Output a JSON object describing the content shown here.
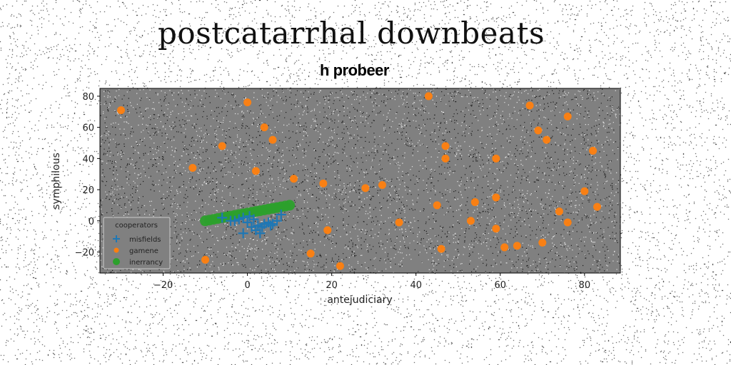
{
  "page": {
    "title": "postcatarrhal downbeats"
  },
  "colors": {
    "plot_background": "#808080",
    "series_blue": "#1f77b4",
    "series_orange": "#ff7f0e",
    "series_green": "#2ca02c"
  },
  "chart_data": {
    "type": "scatter",
    "title": "h probeer",
    "xlabel": "antejudiciary",
    "ylabel": "symphilous",
    "xlim": [
      -35,
      88.5
    ],
    "ylim": [
      -33.5,
      85
    ],
    "xticks": [
      -20,
      0,
      20,
      40,
      60,
      80
    ],
    "yticks": [
      -20,
      0,
      20,
      40,
      60,
      80
    ],
    "grid": false,
    "legend": {
      "title": "cooperators",
      "position": "lower left"
    },
    "series": [
      {
        "name": "misfields",
        "marker": "plus",
        "color": "#1f77b4",
        "points": [
          [
            -6,
            2
          ],
          [
            -4,
            0
          ],
          [
            -2,
            1
          ],
          [
            -1,
            2
          ],
          [
            0,
            -1
          ],
          [
            0.5,
            3
          ],
          [
            1,
            -4
          ],
          [
            1.5,
            1
          ],
          [
            2,
            -6
          ],
          [
            2.5,
            -3
          ],
          [
            3,
            -8
          ],
          [
            3.5,
            -4
          ],
          [
            4,
            -2
          ],
          [
            5,
            -1
          ],
          [
            5.5,
            -3
          ],
          [
            6,
            -2
          ],
          [
            7,
            0
          ],
          [
            8,
            4
          ],
          [
            -1,
            -8
          ],
          [
            -3,
            0
          ]
        ]
      },
      {
        "name": "gamene",
        "marker": "circle",
        "color": "#ff7f0e",
        "points": [
          [
            -30,
            71
          ],
          [
            -13,
            34
          ],
          [
            -10,
            -25
          ],
          [
            -6,
            48
          ],
          [
            0,
            76
          ],
          [
            2,
            32
          ],
          [
            4,
            60
          ],
          [
            6,
            52
          ],
          [
            11,
            27
          ],
          [
            15,
            -21
          ],
          [
            18,
            24
          ],
          [
            19,
            -6
          ],
          [
            22,
            -29
          ],
          [
            28,
            21
          ],
          [
            32,
            23
          ],
          [
            36,
            -1
          ],
          [
            43,
            80
          ],
          [
            45,
            10
          ],
          [
            46,
            -18
          ],
          [
            47,
            40
          ],
          [
            47,
            48
          ],
          [
            53,
            0
          ],
          [
            54,
            12
          ],
          [
            59,
            40
          ],
          [
            59,
            15
          ],
          [
            59,
            -5
          ],
          [
            61,
            -17
          ],
          [
            64,
            -16
          ],
          [
            67,
            74
          ],
          [
            69,
            58
          ],
          [
            70,
            -14
          ],
          [
            71,
            52
          ],
          [
            74,
            6
          ],
          [
            76,
            67
          ],
          [
            76,
            -1
          ],
          [
            80,
            19
          ],
          [
            82,
            45
          ],
          [
            83,
            9
          ]
        ]
      },
      {
        "name": "inerrancy",
        "marker": "circle",
        "color": "#2ca02c",
        "points": [
          [
            -10,
            0
          ],
          [
            -9,
            0.5
          ],
          [
            -8,
            1
          ],
          [
            -7,
            1.5
          ],
          [
            -6,
            2
          ],
          [
            -5,
            2.5
          ],
          [
            -4,
            3
          ],
          [
            -3,
            3.5
          ],
          [
            -2,
            4
          ],
          [
            -1,
            4.5
          ],
          [
            0,
            5
          ],
          [
            1,
            5.5
          ],
          [
            2,
            6
          ],
          [
            3,
            6.5
          ],
          [
            4,
            7
          ],
          [
            5,
            7.5
          ],
          [
            6,
            8
          ],
          [
            7,
            8.5
          ],
          [
            8,
            9
          ],
          [
            9,
            9.5
          ],
          [
            10,
            10
          ]
        ]
      }
    ]
  }
}
